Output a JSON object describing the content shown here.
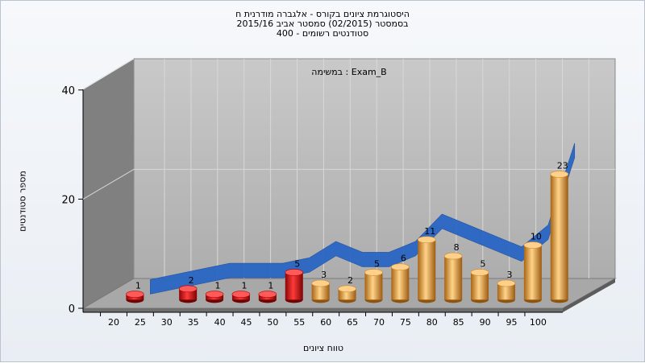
{
  "chart_data": {
    "type": "bar",
    "title_lines": [
      "היסטוגרמת ציונים בקורס - אלגברה מודרנית ח",
      "בסמסטר  (02/2015)  סמסטר אביב 2015/16",
      "סטודנטים רשומים - 400"
    ],
    "annotation": "במשימה : Exam_B",
    "ylabel": "מספר סטודנטים",
    "xlabel": "טווח ציונים",
    "ylim": [
      0,
      40
    ],
    "y_ticks": [
      "0",
      "20",
      "40"
    ],
    "x_ticks": [
      "20",
      "25",
      "30",
      "35",
      "40",
      "45",
      "50",
      "55",
      "60",
      "65",
      "70",
      "75",
      "80",
      "85",
      "90",
      "95",
      "100"
    ],
    "categories": [
      "20",
      "30",
      "35",
      "40",
      "45",
      "50",
      "55",
      "60",
      "65",
      "70",
      "75",
      "80",
      "85",
      "90",
      "95",
      "100"
    ],
    "values": [
      1,
      2,
      1,
      1,
      1,
      5,
      3,
      2,
      5,
      6,
      11,
      8,
      5,
      3,
      10,
      23
    ],
    "value_labels": [
      "1",
      "2",
      "1",
      "1",
      "1",
      "5",
      "3",
      "2",
      "5",
      "6",
      "11",
      "8",
      "5",
      "3",
      "10",
      "23"
    ],
    "bar_colors": [
      "#d81a1a",
      "#d81a1a",
      "#d81a1a",
      "#d81a1a",
      "#d81a1a",
      "#d81a1a",
      "#e8a440",
      "#e8a440",
      "#e8a440",
      "#e8a440",
      "#e8a440",
      "#e8a440",
      "#e8a440",
      "#e8a440",
      "#e8a440",
      "#e8a440"
    ],
    "trend_series": [
      0,
      2,
      3,
      3,
      3,
      4,
      7,
      5,
      5,
      7,
      12,
      10,
      8,
      6,
      10,
      25
    ],
    "trend_color": "#2a66c4",
    "grid": true,
    "chart_style": "3d"
  }
}
